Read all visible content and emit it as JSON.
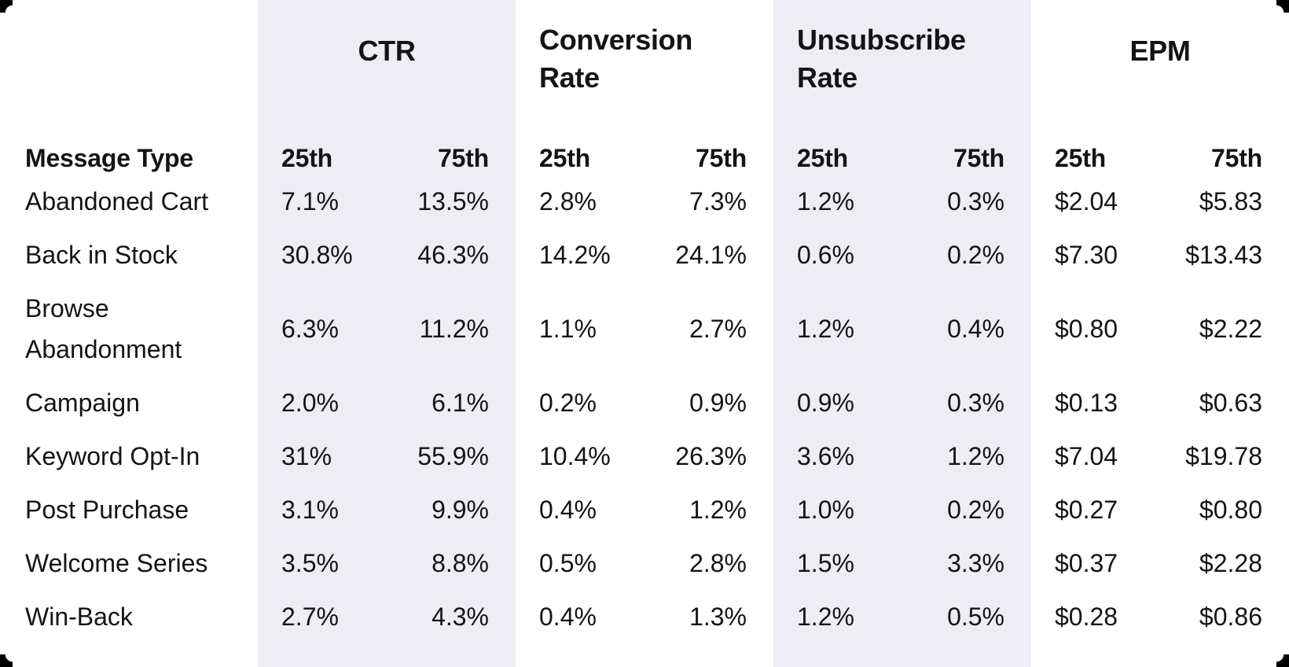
{
  "table": {
    "row_header": "Message Type",
    "groups": [
      {
        "id": "ctr",
        "label": "CTR"
      },
      {
        "id": "conv",
        "label": "Conversion Rate"
      },
      {
        "id": "unsub",
        "label": "Unsubscribe Rate"
      },
      {
        "id": "epm",
        "label": "EPM"
      }
    ],
    "percentile_headers": {
      "p25": "25th",
      "p75": "75th"
    },
    "rows": [
      {
        "label": "Abandoned Cart",
        "ctr_25": "7.1%",
        "ctr_75": "13.5%",
        "conv_25": "2.8%",
        "conv_75": "7.3%",
        "unsub_25": "1.2%",
        "unsub_75": "0.3%",
        "epm_25": "$2.04",
        "epm_75": "$5.83"
      },
      {
        "label": "Back in Stock",
        "ctr_25": "30.8%",
        "ctr_75": "46.3%",
        "conv_25": "14.2%",
        "conv_75": "24.1%",
        "unsub_25": "0.6%",
        "unsub_75": "0.2%",
        "epm_25": "$7.30",
        "epm_75": "$13.43"
      },
      {
        "label": "Browse Abandonment",
        "ctr_25": "6.3%",
        "ctr_75": "11.2%",
        "conv_25": "1.1%",
        "conv_75": "2.7%",
        "unsub_25": "1.2%",
        "unsub_75": "0.4%",
        "epm_25": "$0.80",
        "epm_75": "$2.22"
      },
      {
        "label": "Campaign",
        "ctr_25": "2.0%",
        "ctr_75": "6.1%",
        "conv_25": "0.2%",
        "conv_75": "0.9%",
        "unsub_25": "0.9%",
        "unsub_75": "0.3%",
        "epm_25": "$0.13",
        "epm_75": "$0.63"
      },
      {
        "label": "Keyword Opt-In",
        "ctr_25": "31%",
        "ctr_75": "55.9%",
        "conv_25": "10.4%",
        "conv_75": "26.3%",
        "unsub_25": "3.6%",
        "unsub_75": "1.2%",
        "epm_25": "$7.04",
        "epm_75": "$19.78"
      },
      {
        "label": "Post Purchase",
        "ctr_25": "3.1%",
        "ctr_75": "9.9%",
        "conv_25": "0.4%",
        "conv_75": "1.2%",
        "unsub_25": "1.0%",
        "unsub_75": "0.2%",
        "epm_25": "$0.27",
        "epm_75": "$0.80"
      },
      {
        "label": "Welcome Series",
        "ctr_25": "3.5%",
        "ctr_75": "8.8%",
        "conv_25": "0.5%",
        "conv_75": "2.8%",
        "unsub_25": "1.5%",
        "unsub_75": "3.3%",
        "epm_25": "$0.37",
        "epm_75": "$2.28"
      },
      {
        "label": "Win-Back",
        "ctr_25": "2.7%",
        "ctr_75": "4.3%",
        "conv_25": "0.4%",
        "conv_75": "1.3%",
        "unsub_25": "1.2%",
        "unsub_75": "0.5%",
        "epm_25": "$0.28",
        "epm_75": "$0.86"
      }
    ]
  },
  "colors": {
    "background": "#ffffff",
    "band": "#ededf3",
    "text": "#141418",
    "corner_marks": "#000000"
  },
  "chart_data": {
    "type": "table",
    "title": "",
    "columns": [
      "Message Type",
      "CTR 25th",
      "CTR 75th",
      "Conversion Rate 25th",
      "Conversion Rate 75th",
      "Unsubscribe Rate 25th",
      "Unsubscribe Rate 75th",
      "EPM 25th",
      "EPM 75th"
    ],
    "rows": [
      [
        "Abandoned Cart",
        "7.1%",
        "13.5%",
        "2.8%",
        "7.3%",
        "1.2%",
        "0.3%",
        "$2.04",
        "$5.83"
      ],
      [
        "Back in Stock",
        "30.8%",
        "46.3%",
        "14.2%",
        "24.1%",
        "0.6%",
        "0.2%",
        "$7.30",
        "$13.43"
      ],
      [
        "Browse Abandonment",
        "6.3%",
        "11.2%",
        "1.1%",
        "2.7%",
        "1.2%",
        "0.4%",
        "$0.80",
        "$2.22"
      ],
      [
        "Campaign",
        "2.0%",
        "6.1%",
        "0.2%",
        "0.9%",
        "0.9%",
        "0.3%",
        "$0.13",
        "$0.63"
      ],
      [
        "Keyword Opt-In",
        "31%",
        "55.9%",
        "10.4%",
        "26.3%",
        "3.6%",
        "1.2%",
        "$7.04",
        "$19.78"
      ],
      [
        "Post Purchase",
        "3.1%",
        "9.9%",
        "0.4%",
        "1.2%",
        "1.0%",
        "0.2%",
        "$0.27",
        "$0.80"
      ],
      [
        "Welcome Series",
        "3.5%",
        "8.8%",
        "0.5%",
        "2.8%",
        "1.5%",
        "3.3%",
        "$0.37",
        "$2.28"
      ],
      [
        "Win-Back",
        "2.7%",
        "4.3%",
        "0.4%",
        "1.3%",
        "1.2%",
        "0.5%",
        "$0.28",
        "$0.86"
      ]
    ],
    "layout_hints": {
      "shaded_column_groups": [
        "CTR",
        "Unsubscribe Rate"
      ],
      "gridlines": false,
      "percentile_subcolumns": [
        "25th",
        "75th"
      ]
    }
  }
}
